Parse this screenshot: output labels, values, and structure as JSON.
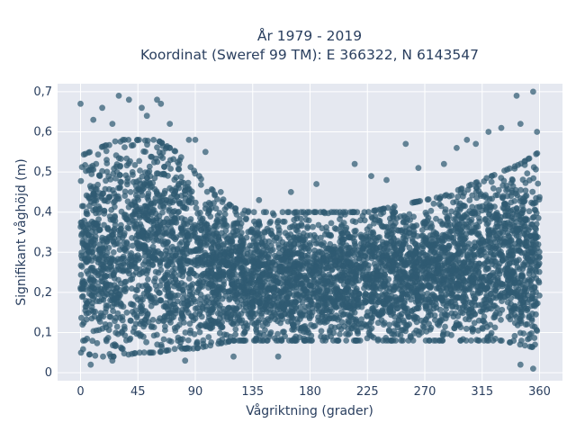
{
  "chart_data": {
    "type": "scatter",
    "title": [
      "År 1979 - 2019",
      "Koordinat (Sweref 99 TM): E 366322, N 6143547"
    ],
    "xlabel": "Vågriktning (grader)",
    "ylabel": "Signifikant våghöjd (m)",
    "xlim": [
      -18,
      378
    ],
    "ylim": [
      -0.02,
      0.72
    ],
    "xticks": [
      0,
      45,
      90,
      135,
      180,
      225,
      270,
      315,
      360
    ],
    "xtick_labels": [
      "0",
      "45",
      "90",
      "135",
      "180",
      "225",
      "270",
      "315",
      "360"
    ],
    "yticks": [
      0,
      0.1,
      0.2,
      0.3,
      0.4,
      0.5,
      0.6,
      0.7
    ],
    "ytick_labels": [
      "0",
      "0,1",
      "0,2",
      "0,3",
      "0,4",
      "0,5",
      "0,6",
      "0,7"
    ],
    "grid": true,
    "marker_color": "#2f5a72",
    "plot_background": "#e5e8f0",
    "band": {
      "x": [
        0,
        15,
        30,
        45,
        60,
        75,
        90,
        105,
        120,
        135,
        150,
        165,
        180,
        195,
        210,
        225,
        240,
        255,
        270,
        285,
        300,
        315,
        330,
        345,
        360
      ],
      "lower": [
        0.05,
        0.04,
        0.04,
        0.05,
        0.05,
        0.06,
        0.06,
        0.07,
        0.08,
        0.08,
        0.08,
        0.08,
        0.08,
        0.08,
        0.08,
        0.08,
        0.08,
        0.08,
        0.08,
        0.08,
        0.08,
        0.08,
        0.08,
        0.07,
        0.06
      ],
      "upper": [
        0.54,
        0.56,
        0.58,
        0.58,
        0.58,
        0.55,
        0.5,
        0.45,
        0.41,
        0.4,
        0.4,
        0.4,
        0.4,
        0.4,
        0.4,
        0.4,
        0.41,
        0.42,
        0.43,
        0.44,
        0.46,
        0.48,
        0.5,
        0.52,
        0.55
      ]
    },
    "outliers": [
      {
        "x": 0,
        "y": 0.67
      },
      {
        "x": 10,
        "y": 0.63
      },
      {
        "x": 17,
        "y": 0.66
      },
      {
        "x": 25,
        "y": 0.62
      },
      {
        "x": 30,
        "y": 0.69
      },
      {
        "x": 38,
        "y": 0.68
      },
      {
        "x": 48,
        "y": 0.66
      },
      {
        "x": 52,
        "y": 0.64
      },
      {
        "x": 60,
        "y": 0.68
      },
      {
        "x": 63,
        "y": 0.67
      },
      {
        "x": 70,
        "y": 0.62
      },
      {
        "x": 85,
        "y": 0.58
      },
      {
        "x": 90,
        "y": 0.58
      },
      {
        "x": 98,
        "y": 0.55
      },
      {
        "x": 110,
        "y": 0.45
      },
      {
        "x": 140,
        "y": 0.43
      },
      {
        "x": 165,
        "y": 0.45
      },
      {
        "x": 185,
        "y": 0.47
      },
      {
        "x": 215,
        "y": 0.52
      },
      {
        "x": 228,
        "y": 0.49
      },
      {
        "x": 240,
        "y": 0.48
      },
      {
        "x": 255,
        "y": 0.57
      },
      {
        "x": 265,
        "y": 0.51
      },
      {
        "x": 285,
        "y": 0.52
      },
      {
        "x": 295,
        "y": 0.56
      },
      {
        "x": 303,
        "y": 0.58
      },
      {
        "x": 310,
        "y": 0.57
      },
      {
        "x": 320,
        "y": 0.6
      },
      {
        "x": 330,
        "y": 0.61
      },
      {
        "x": 342,
        "y": 0.69
      },
      {
        "x": 345,
        "y": 0.62
      },
      {
        "x": 355,
        "y": 0.7
      },
      {
        "x": 358,
        "y": 0.6
      },
      {
        "x": 8,
        "y": 0.02
      },
      {
        "x": 25,
        "y": 0.03
      },
      {
        "x": 82,
        "y": 0.03
      },
      {
        "x": 120,
        "y": 0.04
      },
      {
        "x": 155,
        "y": 0.04
      },
      {
        "x": 345,
        "y": 0.02
      },
      {
        "x": 355,
        "y": 0.01
      }
    ]
  }
}
